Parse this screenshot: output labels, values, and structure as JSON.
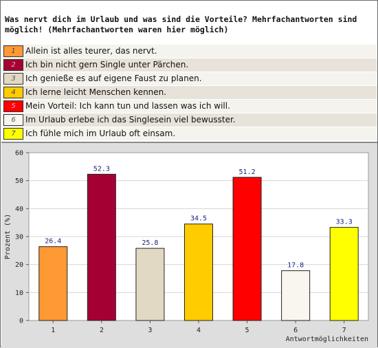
{
  "title": "Was nervt dich im Urlaub und was sind die Vorteile? Mehrfachantworten sind möglich! (Mehrfachantworten waren hier möglich)",
  "legend": [
    {
      "num": "1",
      "text": "Allein ist alles teurer, das nervt.",
      "color": "#ff9933",
      "numColor": "#444444"
    },
    {
      "num": "2",
      "text": "Ich bin nicht gern Single unter Pärchen.",
      "color": "#a50034",
      "numColor": "#e8b0c0"
    },
    {
      "num": "3",
      "text": "Ich genieße es auf eigene Faust zu planen.",
      "color": "#e2d9c4",
      "numColor": "#555555"
    },
    {
      "num": "4",
      "text": "Ich lerne leicht Menschen kennen.",
      "color": "#ffcc00",
      "numColor": "#444444"
    },
    {
      "num": "5",
      "text": "Mein Vorteil: Ich kann tun und lassen was ich will.",
      "color": "#ff0000",
      "numColor": "#ffb0b0"
    },
    {
      "num": "6",
      "text": "Im Urlaub erlebe ich das Singlesein viel bewusster.",
      "color": "#f8f6ee",
      "numColor": "#555555"
    },
    {
      "num": "7",
      "text": "Ich fühle mich im Urlaub oft einsam.",
      "color": "#ffff00",
      "numColor": "#444444"
    }
  ],
  "chart_data": {
    "type": "bar",
    "categories": [
      "1",
      "2",
      "3",
      "4",
      "5",
      "6",
      "7"
    ],
    "values": [
      26.4,
      52.3,
      25.8,
      34.5,
      51.2,
      17.8,
      33.3
    ],
    "value_labels": [
      "26.4",
      "52.3",
      "25.8",
      "34.5",
      "51.2",
      "17.8",
      "33.3"
    ],
    "colors": [
      "#ff9933",
      "#a50034",
      "#e2d9c4",
      "#ffcc00",
      "#ff0000",
      "#f8f6ee",
      "#ffff00"
    ],
    "ylabel": "Prozent (%)",
    "xlabel": "Antwortmöglichkeiten",
    "ylim": [
      0,
      60
    ],
    "yticks": [
      0,
      10,
      20,
      30,
      40,
      50,
      60
    ],
    "grid": true
  }
}
